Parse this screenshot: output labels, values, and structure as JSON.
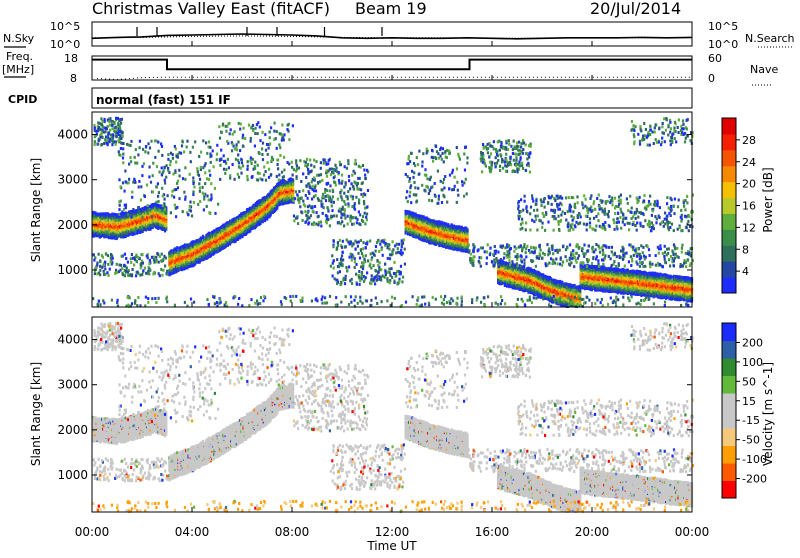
{
  "header": {
    "station_title": "Christmas Valley East (fitACF)",
    "beam_label": "Beam 19",
    "date": "20/Jul/2014"
  },
  "strip_labels": {
    "nsky": "N.Sky",
    "nsearch": "N.Search",
    "freq": "Freq.",
    "freq_unit": "[MHz]",
    "nave": "Nave",
    "cpid": "CPID",
    "mode": "normal (fast) 151 IF"
  },
  "strip_ticks": {
    "noise_top": "10^5",
    "noise_bottom": "10^0",
    "freq_top": "18",
    "freq_bottom": "8",
    "nave_top": "60",
    "nave_bottom": "0"
  },
  "colors": {
    "power_scale": [
      "#1d2cff",
      "#2547a3",
      "#2e6f5c",
      "#3b8e4a",
      "#5fae3c",
      "#b8c92c",
      "#f5c000",
      "#f58a00",
      "#f55400",
      "#f52000",
      "#e00000"
    ],
    "velocity_scale": [
      "#ff0000",
      "#ff5a00",
      "#ff9e00",
      "#f5c87a",
      "#c8c8c8",
      "#c8c8c8",
      "#62b93b",
      "#2f8a30",
      "#2c5fa8",
      "#1a2bff"
    ]
  },
  "chart_data": [
    {
      "type": "line",
      "panel": "noise",
      "x_label": "",
      "y_ticks": [
        "10^0",
        "10^5"
      ],
      "series": [
        {
          "name": "N.Sky",
          "x": [
            0,
            1,
            2,
            3,
            4,
            5,
            6,
            7,
            8,
            9,
            10,
            11,
            12,
            13,
            14,
            15,
            16,
            17,
            18,
            19,
            20,
            21,
            22,
            23,
            24
          ],
          "y": [
            1.6,
            1.8,
            1.9,
            2.2,
            2.3,
            2.4,
            2.5,
            2.4,
            2.3,
            2.1,
            1.7,
            1.6,
            1.7,
            1.6,
            1.6,
            1.7,
            1.6,
            1.5,
            1.6,
            1.7,
            1.7,
            1.7,
            1.8,
            1.7,
            1.8
          ]
        },
        {
          "name": "N.Search",
          "x": [
            0,
            2,
            4,
            6,
            8,
            10,
            12,
            14,
            16,
            18,
            20,
            22,
            24
          ],
          "y": [
            1.7,
            1.8,
            2.0,
            2.1,
            2.0,
            1.8,
            1.7,
            1.7,
            1.6,
            1.6,
            1.7,
            1.7,
            1.8
          ]
        }
      ]
    },
    {
      "type": "line",
      "panel": "frequency",
      "series": [
        {
          "name": "Freq.",
          "x": [
            0,
            3,
            3,
            15.1,
            15.1,
            24
          ],
          "y": [
            16.5,
            16.5,
            12.5,
            12.5,
            16.5,
            16.5
          ]
        },
        {
          "name": "Nave",
          "x": [
            0.2,
            1,
            2,
            3,
            6,
            9,
            12,
            15,
            18,
            21,
            24
          ],
          "y": [
            4,
            1,
            6,
            7,
            7,
            7,
            7,
            7,
            7,
            7,
            7
          ]
        }
      ]
    },
    {
      "type": "heatmap",
      "panel": "power",
      "xlabel": "",
      "ylabel": "Slant Range [km]",
      "xlim": [
        0,
        24
      ],
      "ylim": [
        180,
        4500
      ],
      "x_ticks": [
        "00:00",
        "04:00",
        "08:00",
        "12:00",
        "16:00",
        "20:00",
        "00:00"
      ],
      "y_ticks": [
        1000,
        2000,
        3000,
        4000
      ],
      "colorbar": {
        "label": "Power [dB]",
        "ticks": [
          4,
          8,
          12,
          16,
          20,
          24,
          28
        ]
      },
      "bands": [
        {
          "x": [
            0,
            1,
            2,
            2.5,
            2.95
          ],
          "y": [
            2050,
            2000,
            2150,
            2250,
            2150
          ],
          "peak_db": 26
        },
        {
          "x": [
            3.05,
            4,
            5,
            6,
            7,
            7.5,
            8
          ],
          "y": [
            1200,
            1400,
            1700,
            2050,
            2450,
            2750,
            2800
          ],
          "peak_db": 28
        },
        {
          "x": [
            12.5,
            13.5,
            14.5,
            15
          ],
          "y": [
            2100,
            1900,
            1750,
            1700
          ],
          "peak_db": 25
        },
        {
          "x": [
            16.2,
            17.5,
            18.5,
            19.5
          ],
          "y": [
            1000,
            800,
            550,
            400
          ],
          "peak_db": 30
        },
        {
          "x": [
            19.5,
            21,
            22.5,
            24
          ],
          "y": [
            900,
            800,
            700,
            600
          ],
          "peak_db": 30
        }
      ]
    },
    {
      "type": "heatmap",
      "panel": "velocity",
      "xlabel": "Time UT",
      "ylabel": "Slant Range [km]",
      "xlim": [
        0,
        24
      ],
      "ylim": [
        180,
        4500
      ],
      "x_ticks": [
        "00:00",
        "04:00",
        "08:00",
        "12:00",
        "16:00",
        "20:00",
        "00:00"
      ],
      "y_ticks": [
        1000,
        2000,
        3000,
        4000
      ],
      "colorbar": {
        "label": "Velocity [m s^-1]",
        "ticks": [
          200,
          100,
          50,
          15,
          -15,
          -50,
          -100,
          -200
        ]
      }
    }
  ]
}
